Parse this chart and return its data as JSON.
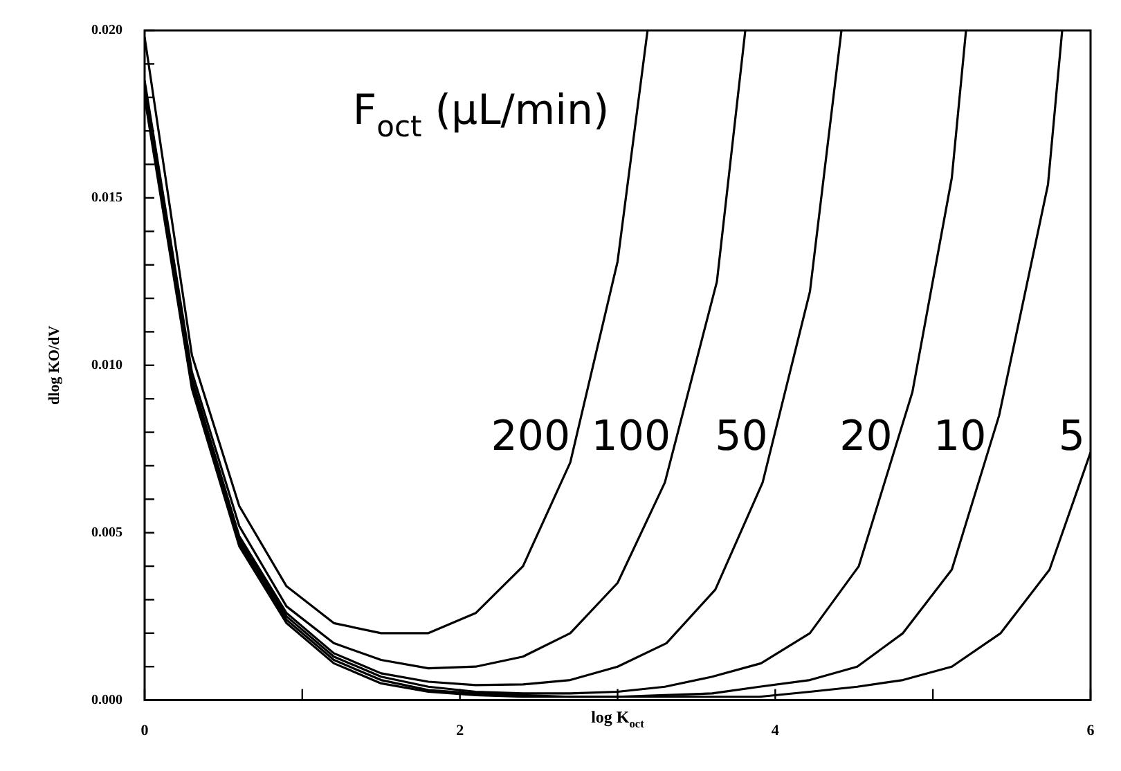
{
  "chart_data": {
    "type": "line",
    "xlabel": "log K$_{oct}$",
    "ylabel": "dlog KO/dV",
    "legend_title": "F$_{oct}$ (μL/min)",
    "xlim": [
      0,
      6
    ],
    "xticks": [
      0,
      {
        "value": 1,
        "label": null
      },
      2,
      {
        "value": 3,
        "label": null
      },
      4,
      {
        "value": 5,
        "label": null
      },
      6
    ],
    "ylim": [
      0,
      0.02
    ],
    "yticks": [
      {
        "value": 0,
        "label": "0.000"
      },
      {
        "value": 0.001,
        "label": null
      },
      {
        "value": 0.002,
        "label": null
      },
      {
        "value": 0.003,
        "label": null
      },
      {
        "value": 0.004,
        "label": null
      },
      {
        "value": 0.005,
        "label": "0.005"
      },
      {
        "value": 0.006,
        "label": null
      },
      {
        "value": 0.007,
        "label": null
      },
      {
        "value": 0.008,
        "label": null
      },
      {
        "value": 0.009,
        "label": null
      },
      {
        "value": 0.01,
        "label": "0.010"
      },
      {
        "value": 0.011,
        "label": null
      },
      {
        "value": 0.012,
        "label": null
      },
      {
        "value": 0.013,
        "label": null
      },
      {
        "value": 0.014,
        "label": null
      },
      {
        "value": 0.015,
        "label": "0.015"
      },
      {
        "value": 0.016,
        "label": null
      },
      {
        "value": 0.017,
        "label": null
      },
      {
        "value": 0.018,
        "label": null
      },
      {
        "value": 0.019,
        "label": null
      },
      {
        "value": 0.02,
        "label": "0.020"
      }
    ],
    "grid": false,
    "legend": false,
    "marker": "none",
    "line_style": "solid",
    "series": [
      {
        "name": "200",
        "color": "#000000",
        "x": [
          0,
          0.3,
          0.6,
          0.9,
          1.2,
          1.5,
          1.8,
          2.1,
          2.4,
          2.7,
          3.0,
          3.19
        ],
        "values": [
          0.0198,
          0.0103,
          0.0058,
          0.0034,
          0.0023,
          0.002,
          0.002,
          0.0026,
          0.004,
          0.0071,
          0.0131,
          0.02
        ]
      },
      {
        "name": "100",
        "color": "#000000",
        "x": [
          0,
          0.3,
          0.6,
          0.9,
          1.2,
          1.5,
          1.8,
          2.1,
          2.4,
          2.7,
          3.0,
          3.3,
          3.63,
          3.81
        ],
        "values": [
          0.0185,
          0.0098,
          0.0052,
          0.0028,
          0.0017,
          0.0012,
          0.00095,
          0.001,
          0.0013,
          0.002,
          0.0035,
          0.0065,
          0.0125,
          0.02
        ]
      },
      {
        "name": "50",
        "color": "#000000",
        "x": [
          0,
          0.3,
          0.6,
          0.9,
          1.2,
          1.5,
          1.8,
          2.1,
          2.4,
          2.7,
          3.0,
          3.31,
          3.62,
          3.92,
          4.22,
          4.42
        ],
        "values": [
          0.0183,
          0.0096,
          0.0049,
          0.0026,
          0.0014,
          0.0008,
          0.00055,
          0.00045,
          0.00047,
          0.0006,
          0.001,
          0.0017,
          0.0033,
          0.0065,
          0.0122,
          0.02
        ]
      },
      {
        "name": "20",
        "color": "#000000",
        "x": [
          0,
          0.3,
          0.6,
          0.9,
          1.2,
          1.5,
          1.8,
          2.1,
          2.4,
          2.7,
          3.0,
          3.3,
          3.6,
          3.91,
          4.22,
          4.53,
          4.87,
          5.12,
          5.21
        ],
        "values": [
          0.0182,
          0.0095,
          0.0048,
          0.0025,
          0.0013,
          0.0007,
          0.0004,
          0.00025,
          0.0002,
          0.0002,
          0.00025,
          0.0004,
          0.0007,
          0.0011,
          0.002,
          0.004,
          0.0092,
          0.0156,
          0.02
        ]
      },
      {
        "name": "10",
        "color": "#000000",
        "x": [
          0,
          0.3,
          0.6,
          0.9,
          1.2,
          1.5,
          1.8,
          2.1,
          2.4,
          2.7,
          3.0,
          3.3,
          3.6,
          3.9,
          4.22,
          4.52,
          4.81,
          5.12,
          5.42,
          5.73,
          5.82
        ],
        "values": [
          0.0181,
          0.0094,
          0.0047,
          0.0024,
          0.0012,
          0.0006,
          0.0003,
          0.0002,
          0.00015,
          0.0001,
          0.0001,
          0.00015,
          0.0002,
          0.0004,
          0.0006,
          0.001,
          0.002,
          0.0039,
          0.0085,
          0.0154,
          0.02
        ]
      },
      {
        "name": "5",
        "color": "#000000",
        "x": [
          0,
          0.3,
          0.6,
          0.9,
          1.2,
          1.5,
          1.8,
          2.1,
          2.4,
          2.7,
          3.0,
          3.3,
          3.6,
          3.9,
          4.22,
          4.52,
          4.81,
          5.12,
          5.43,
          5.74,
          6.0
        ],
        "values": [
          0.018,
          0.0093,
          0.0046,
          0.0023,
          0.0011,
          0.0005,
          0.00025,
          0.00015,
          0.0001,
          0.0001,
          0.0001,
          0.0001,
          0.0001,
          0.0001,
          0.00025,
          0.0004,
          0.0006,
          0.001,
          0.002,
          0.0039,
          0.0074
        ]
      }
    ]
  }
}
